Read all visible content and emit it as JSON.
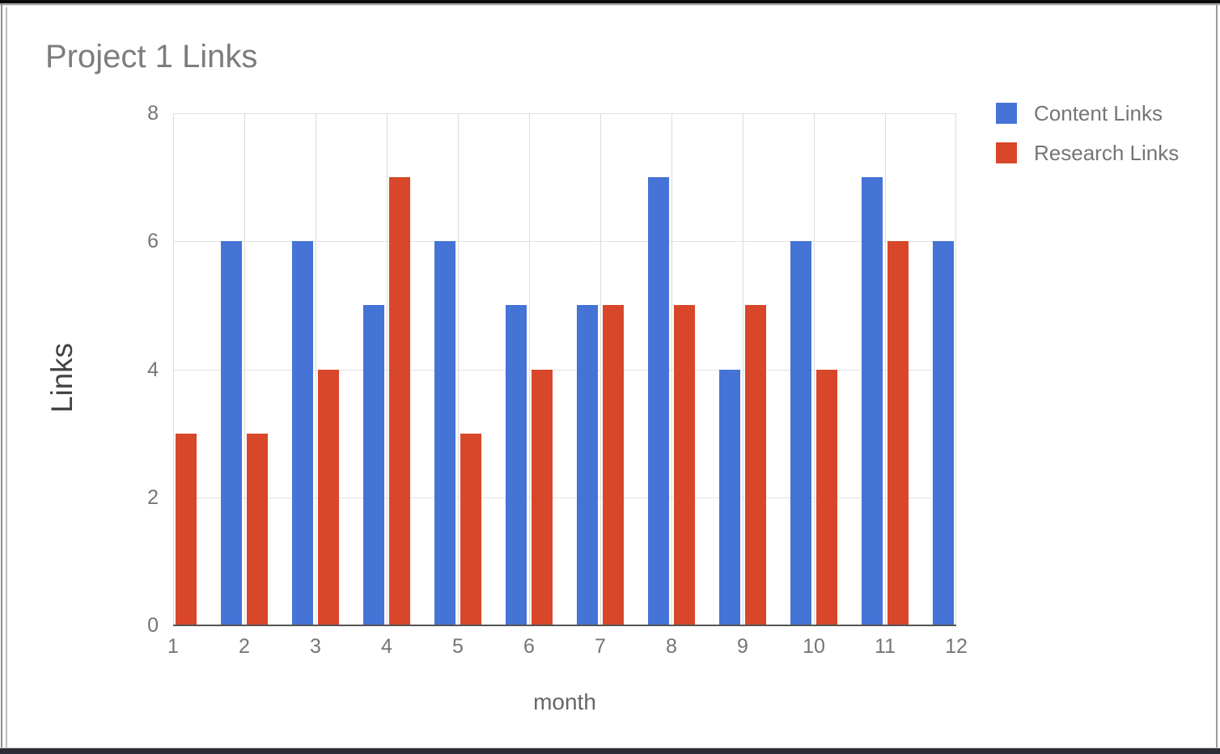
{
  "chart_data": {
    "type": "bar",
    "title": "Project 1 Links",
    "xlabel": "month",
    "ylabel": "Links",
    "categories": [
      "1",
      "2",
      "3",
      "4",
      "5",
      "6",
      "7",
      "8",
      "9",
      "10",
      "11",
      "12"
    ],
    "series": [
      {
        "name": "Content Links",
        "color": "#4573d6",
        "values": [
          0,
          6,
          6,
          5,
          6,
          5,
          5,
          7,
          4,
          6,
          7,
          6
        ]
      },
      {
        "name": "Research Links",
        "color": "#d8472a",
        "values": [
          3,
          3,
          4,
          7,
          3,
          4,
          5,
          5,
          5,
          4,
          6,
          0
        ]
      }
    ],
    "ylim": [
      0,
      8
    ],
    "y_ticks": [
      0,
      2,
      4,
      6,
      8
    ],
    "grid": true,
    "legend_position": "top-right"
  }
}
